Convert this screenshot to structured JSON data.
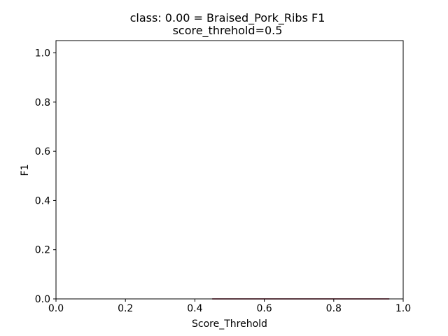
{
  "chart_data": {
    "type": "line",
    "title": "class: 0.00 = Braised_Pork_Ribs F1",
    "subtitle": "score_threhold=0.5",
    "xlabel": "Score_Threhold",
    "ylabel": "F1",
    "xlim": [
      0.0,
      1.0
    ],
    "ylim": [
      0.0,
      1.05
    ],
    "x_ticks": [
      "0.0",
      "0.2",
      "0.4",
      "0.6",
      "0.8",
      "1.0"
    ],
    "y_ticks": [
      "0.0",
      "0.2",
      "0.4",
      "0.6",
      "0.8",
      "1.0"
    ],
    "grid": false,
    "legend": "none",
    "series": [
      {
        "color": "#1f77b4",
        "x": [
          0.45,
          0.96
        ],
        "y": [
          0.0,
          0.0
        ]
      },
      {
        "color": "#d62728",
        "x": [
          0.45,
          0.96
        ],
        "y": [
          0.0,
          0.0
        ]
      }
    ]
  }
}
